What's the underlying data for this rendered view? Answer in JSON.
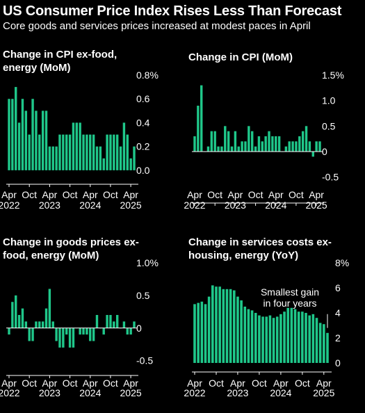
{
  "header": {
    "title": "US Consumer Price Index Rises Less Than Forecast",
    "subtitle": "Core goods and services prices increased at modest paces in April"
  },
  "colors": {
    "background": "#000000",
    "bar": "#1fc78a",
    "text": "#ffffff",
    "axis": "#ffffff"
  },
  "chart_data": [
    {
      "type": "bar",
      "title_lines": [
        "Change in CPI ex-food,",
        "energy (MoM)"
      ],
      "x_start": "2022-04",
      "values": [
        0.6,
        0.6,
        0.7,
        0.4,
        0.6,
        0.5,
        0.3,
        0.6,
        0.5,
        0.3,
        0.5,
        0.5,
        0.2,
        0.2,
        0.2,
        0.3,
        0.3,
        0.3,
        0.3,
        0.4,
        0.4,
        0.4,
        0.3,
        0.3,
        0.3,
        0.3,
        0.2,
        0.2,
        0.1,
        0.3,
        0.3,
        0.3,
        0.3,
        0.2,
        0.4,
        0.3,
        0.1,
        0.2
      ],
      "ylim": [
        -0.1,
        0.8
      ],
      "yticks": [
        {
          "v": 0.8,
          "label": "0.8%"
        },
        {
          "v": 0.6,
          "label": "0.6"
        },
        {
          "v": 0.4,
          "label": "0.4"
        },
        {
          "v": 0.2,
          "label": "0.2"
        },
        {
          "v": 0.0,
          "label": "0.0"
        }
      ],
      "xlabels": [
        {
          "i": 0,
          "label": "Apr"
        },
        {
          "i": 6,
          "label": "Oct"
        },
        {
          "i": 12,
          "label": "Apr"
        },
        {
          "i": 18,
          "label": "Oct"
        },
        {
          "i": 24,
          "label": "Apr"
        },
        {
          "i": 30,
          "label": "Oct"
        },
        {
          "i": 36,
          "label": "Apr"
        }
      ],
      "years": [
        {
          "i": 0,
          "label": "2022"
        },
        {
          "i": 12,
          "label": "2023"
        },
        {
          "i": 24,
          "label": "2024"
        },
        {
          "i": 36,
          "label": "2025"
        }
      ],
      "zero_line": false,
      "annotation": null
    },
    {
      "type": "bar",
      "title_lines": [
        "Change in CPI (MoM)"
      ],
      "x_start": "2022-04",
      "values": [
        0.3,
        0.9,
        1.3,
        0.0,
        0.1,
        0.4,
        0.4,
        0.1,
        0.1,
        0.5,
        0.4,
        0.1,
        0.4,
        0.1,
        0.2,
        0.2,
        0.5,
        0.4,
        0.1,
        0.3,
        0.2,
        0.3,
        0.4,
        0.3,
        0.3,
        0.3,
        0.0,
        0.1,
        0.2,
        0.2,
        0.2,
        0.3,
        0.4,
        0.5,
        0.2,
        -0.1,
        0.2,
        0.2
      ],
      "ylim": [
        -0.6,
        1.5
      ],
      "yticks": [
        {
          "v": 1.5,
          "label": "1.5%"
        },
        {
          "v": 1.0,
          "label": "1.0"
        },
        {
          "v": 0.5,
          "label": "0.5"
        },
        {
          "v": 0.0,
          "label": "0"
        },
        {
          "v": -0.5,
          "label": "-0.5"
        }
      ],
      "xlabels": [
        {
          "i": 0,
          "label": "Apr"
        },
        {
          "i": 6,
          "label": "Oct"
        },
        {
          "i": 12,
          "label": "Apr"
        },
        {
          "i": 18,
          "label": "Oct"
        },
        {
          "i": 24,
          "label": "Apr"
        },
        {
          "i": 30,
          "label": "Oct"
        },
        {
          "i": 36,
          "label": "Apr"
        }
      ],
      "years": [
        {
          "i": 0,
          "label": "2022"
        },
        {
          "i": 12,
          "label": "2023"
        },
        {
          "i": 24,
          "label": "2024"
        },
        {
          "i": 36,
          "label": "2025"
        }
      ],
      "zero_line": true,
      "annotation": null
    },
    {
      "type": "bar",
      "title_lines": [
        "Change in goods prices ex-",
        "food, energy (MoM)"
      ],
      "x_start": "2022-04",
      "values": [
        -0.1,
        0.4,
        0.5,
        0.2,
        0.3,
        0.1,
        -0.2,
        -0.2,
        0.1,
        0.1,
        0.1,
        0.3,
        0.6,
        0.1,
        -0.2,
        -0.3,
        -0.3,
        -0.1,
        -0.3,
        -0.3,
        0.0,
        -0.1,
        -0.1,
        -0.1,
        -0.2,
        -0.2,
        0.2,
        0.0,
        -0.1,
        0.2,
        0.2,
        0.1,
        0.2,
        0.0,
        0.1,
        -0.1,
        -0.1,
        0.1
      ],
      "ylim": [
        -0.6,
        1.0
      ],
      "yticks": [
        {
          "v": 1.0,
          "label": "1.0%"
        },
        {
          "v": 0.5,
          "label": "0.5"
        },
        {
          "v": 0.0,
          "label": "0"
        },
        {
          "v": -0.5,
          "label": "-0.5"
        }
      ],
      "xlabels": [
        {
          "i": 0,
          "label": "Apr"
        },
        {
          "i": 6,
          "label": "Oct"
        },
        {
          "i": 12,
          "label": "Apr"
        },
        {
          "i": 18,
          "label": "Oct"
        },
        {
          "i": 24,
          "label": "Apr"
        },
        {
          "i": 30,
          "label": "Oct"
        },
        {
          "i": 36,
          "label": "Apr"
        }
      ],
      "years": [
        {
          "i": 0,
          "label": "2022"
        },
        {
          "i": 12,
          "label": "2023"
        },
        {
          "i": 24,
          "label": "2024"
        },
        {
          "i": 36,
          "label": "2025"
        }
      ],
      "zero_line": true,
      "annotation": null
    },
    {
      "type": "bar",
      "title_lines": [
        "Change in services costs ex-",
        "housing, energy (YoY)"
      ],
      "x_start": "2022-04",
      "values": [
        4.7,
        4.8,
        4.9,
        4.7,
        5.3,
        6.2,
        6.1,
        6.1,
        5.9,
        5.9,
        5.9,
        5.8,
        5.3,
        5.0,
        4.5,
        4.3,
        4.2,
        4.0,
        3.8,
        3.7,
        3.7,
        3.8,
        3.6,
        3.7,
        3.9,
        4.1,
        4.4,
        4.4,
        4.3,
        4.1,
        4.1,
        4.0,
        3.8,
        3.9,
        3.6,
        3.2,
        3.1,
        2.4
      ],
      "ylim": [
        0,
        8
      ],
      "yticks": [
        {
          "v": 8,
          "label": "8%"
        },
        {
          "v": 6,
          "label": "6"
        },
        {
          "v": 4,
          "label": "4"
        },
        {
          "v": 2,
          "label": "2"
        },
        {
          "v": 0,
          "label": "0"
        }
      ],
      "xlabels": [
        {
          "i": 0,
          "label": "Apr"
        },
        {
          "i": 6,
          "label": "Oct"
        },
        {
          "i": 12,
          "label": "Apr"
        },
        {
          "i": 18,
          "label": "Oct"
        },
        {
          "i": 24,
          "label": "Apr"
        },
        {
          "i": 30,
          "label": "Oct"
        },
        {
          "i": 36,
          "label": "Apr"
        }
      ],
      "years": [
        {
          "i": 0,
          "label": "2022"
        },
        {
          "i": 12,
          "label": "2023"
        },
        {
          "i": 24,
          "label": "2024"
        },
        {
          "i": 36,
          "label": "2025"
        }
      ],
      "zero_line": false,
      "annotation": {
        "lines": [
          "Smallest gain",
          "in four years"
        ],
        "i": 37,
        "y_from": 3.9,
        "y_to": 2.8
      }
    }
  ]
}
